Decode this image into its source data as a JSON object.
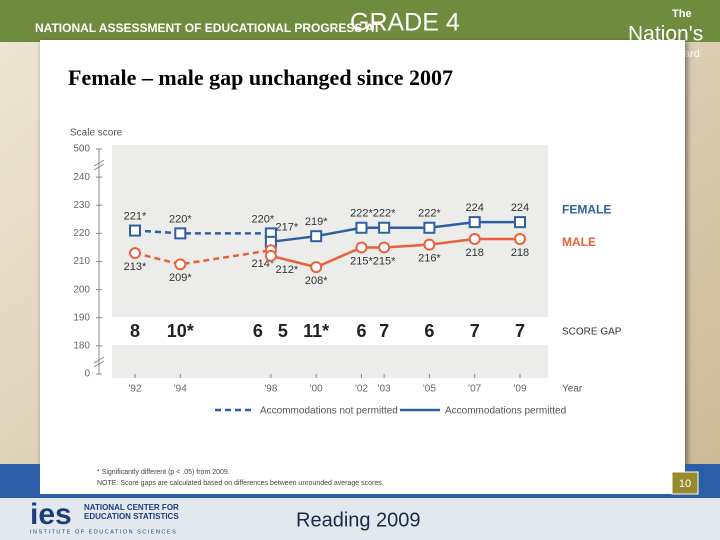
{
  "header": {
    "line": "NATIONAL ASSESSMENT OF EDUCATIONAL PROGRESS AT",
    "grade": "GRADE 4",
    "logo": [
      "The",
      "Nation's",
      "Report Card"
    ]
  },
  "chart_data": {
    "type": "line",
    "title": "Female – male gap unchanged since 2007",
    "y_label": "Scale score",
    "x_label": "Year",
    "xlim": [
      1991,
      2010
    ],
    "xticks": [
      {
        "value": 1992,
        "label": "'92"
      },
      {
        "value": 1994,
        "label": "'94"
      },
      {
        "value": 1998,
        "label": "'98"
      },
      {
        "value": 2000,
        "label": "'00"
      },
      {
        "value": 2002,
        "label": "'02"
      },
      {
        "value": 2003,
        "label": "'03"
      },
      {
        "value": 2005,
        "label": "'05"
      },
      {
        "value": 2007,
        "label": "'07"
      },
      {
        "value": 2009,
        "label": "'09"
      }
    ],
    "ylim": [
      170,
      250
    ],
    "yticks": [
      0,
      180,
      190,
      200,
      210,
      220,
      230,
      240,
      500
    ],
    "axis_break": true,
    "line_styles": [
      {
        "name": "Accommodations not permitted",
        "dashed": true
      },
      {
        "name": "Accommodations permitted",
        "dashed": false
      }
    ],
    "series": [
      {
        "name": "FEMALE",
        "color": "#2e5fa3",
        "marker": "square",
        "parts": [
          {
            "dashed": true,
            "x": [
              1992,
              1994,
              1998
            ],
            "values": [
              221,
              220,
              220
            ],
            "value_labels": [
              "221*",
              "220*",
              "220*"
            ]
          },
          {
            "dashed": false,
            "x": [
              1998,
              2000,
              2002,
              2003,
              2005,
              2007,
              2009
            ],
            "values": [
              217,
              219,
              222,
              222,
              222,
              224,
              224
            ],
            "value_labels": [
              "217*",
              "219*",
              "222*",
              "222*",
              "222*",
              "224",
              "224"
            ]
          }
        ]
      },
      {
        "name": "MALE",
        "color": "#e8603c",
        "marker": "circle",
        "parts": [
          {
            "dashed": true,
            "x": [
              1992,
              1994,
              1998
            ],
            "values": [
              213,
              209,
              214
            ],
            "value_labels": [
              "213*",
              "209*",
              "214*"
            ]
          },
          {
            "dashed": false,
            "x": [
              1998,
              2000,
              2002,
              2003,
              2005,
              2007,
              2009
            ],
            "values": [
              212,
              208,
              215,
              215,
              216,
              218,
              218
            ],
            "value_labels": [
              "212*",
              "208*",
              "215*",
              "215*",
              "216*",
              "218",
              "218"
            ]
          }
        ]
      }
    ],
    "score_gap": {
      "name": "SCORE GAP",
      "x": [
        1992,
        1994,
        1998,
        1998,
        2000,
        2002,
        2003,
        2005,
        2007,
        2009
      ],
      "values": [
        8,
        10,
        6,
        5,
        11,
        6,
        7,
        6,
        7,
        7
      ],
      "value_labels": [
        "8",
        "10*",
        "6",
        "5",
        "11*",
        "6",
        "7",
        "6",
        "7",
        "7"
      ]
    },
    "notes": [
      "* Significantly different (p < .05) from 2009.",
      "NOTE: Score gaps are calculated based on differences between unrounded average scores."
    ]
  },
  "footer": {
    "org": "ies",
    "org_lines": [
      "NATIONAL CENTER FOR",
      "EDUCATION STATISTICS"
    ],
    "institute": "INSTITUTE OF EDUCATION SCIENCES",
    "subject": "Reading 2009",
    "page": "10"
  }
}
